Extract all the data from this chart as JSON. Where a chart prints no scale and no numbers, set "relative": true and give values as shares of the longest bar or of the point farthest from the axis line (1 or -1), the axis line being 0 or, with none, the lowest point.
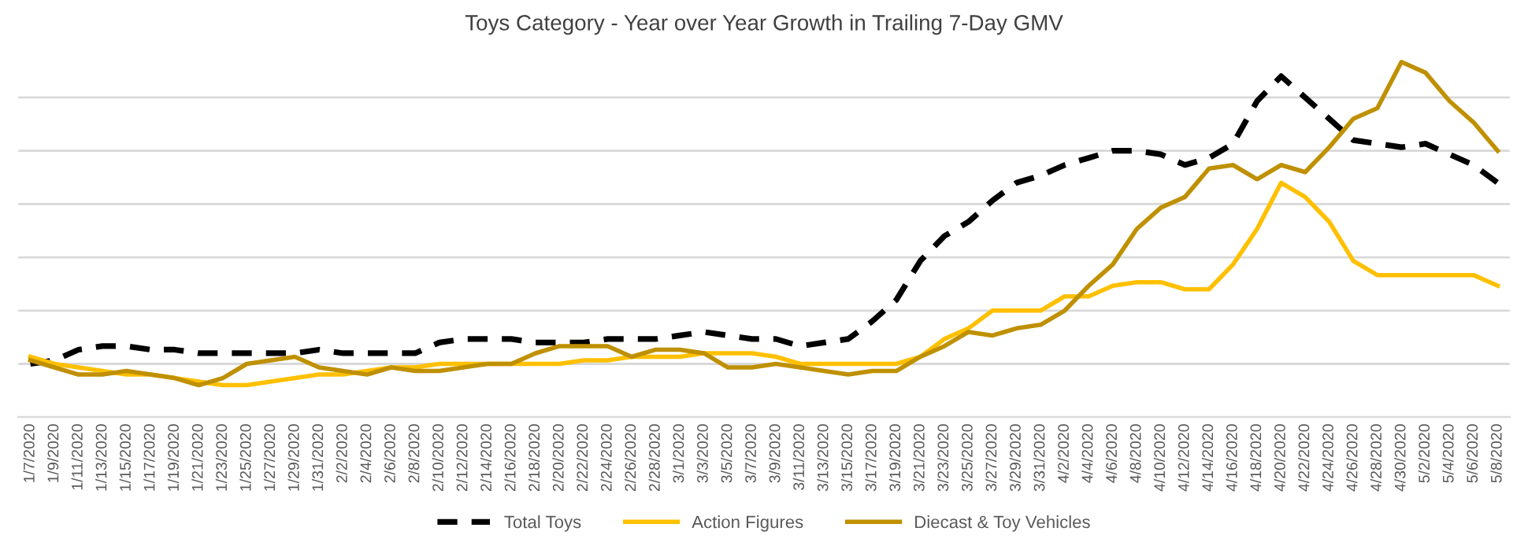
{
  "chart_data": {
    "type": "line",
    "title": "Toys Category - Year over Year Growth in Trailing 7-Day GMV",
    "relative": true,
    "grid": "y",
    "legend": "bottom",
    "categories": [
      "1/7/2020",
      "1/9/2020",
      "1/11/2020",
      "1/13/2020",
      "1/15/2020",
      "1/17/2020",
      "1/19/2020",
      "1/21/2020",
      "1/23/2020",
      "1/25/2020",
      "1/27/2020",
      "1/29/2020",
      "1/31/2020",
      "2/2/2020",
      "2/4/2020",
      "2/6/2020",
      "2/8/2020",
      "2/10/2020",
      "2/12/2020",
      "2/14/2020",
      "2/16/2020",
      "2/18/2020",
      "2/20/2020",
      "2/22/2020",
      "2/24/2020",
      "2/26/2020",
      "2/28/2020",
      "3/1/2020",
      "3/3/2020",
      "3/5/2020",
      "3/7/2020",
      "3/9/2020",
      "3/11/2020",
      "3/13/2020",
      "3/15/2020",
      "3/17/2020",
      "3/19/2020",
      "3/21/2020",
      "3/23/2020",
      "3/25/2020",
      "3/27/2020",
      "3/29/2020",
      "3/31/2020",
      "4/2/2020",
      "4/4/2020",
      "4/6/2020",
      "4/8/2020",
      "4/10/2020",
      "4/12/2020",
      "4/14/2020",
      "4/16/2020",
      "4/18/2020",
      "4/20/2020",
      "4/22/2020",
      "4/24/2020",
      "4/26/2020",
      "4/28/2020",
      "4/30/2020",
      "5/2/2020",
      "5/4/2020",
      "5/6/2020",
      "5/8/2020"
    ],
    "series": [
      {
        "name": "Total Toys",
        "color": "#000000",
        "line_style": "dashed",
        "values": [
          0.15,
          0.16,
          0.19,
          0.2,
          0.2,
          0.19,
          0.19,
          0.18,
          0.18,
          0.18,
          0.18,
          0.18,
          0.19,
          0.18,
          0.18,
          0.18,
          0.18,
          0.21,
          0.22,
          0.22,
          0.22,
          0.21,
          0.21,
          0.21,
          0.22,
          0.22,
          0.22,
          0.23,
          0.24,
          0.23,
          0.22,
          0.22,
          0.2,
          0.21,
          0.22,
          0.27,
          0.33,
          0.44,
          0.51,
          0.55,
          0.61,
          0.66,
          0.68,
          0.71,
          0.73,
          0.75,
          0.75,
          0.74,
          0.71,
          0.73,
          0.77,
          0.89,
          0.96,
          0.9,
          0.84,
          0.78,
          0.77,
          0.76,
          0.77,
          0.74,
          0.71,
          0.66
        ]
      },
      {
        "name": "Action Figures",
        "color": "#ffc000",
        "line_style": "solid",
        "values": [
          0.17,
          0.15,
          0.14,
          0.13,
          0.12,
          0.12,
          0.11,
          0.1,
          0.09,
          0.09,
          0.1,
          0.11,
          0.12,
          0.12,
          0.13,
          0.14,
          0.14,
          0.15,
          0.15,
          0.15,
          0.15,
          0.15,
          0.15,
          0.16,
          0.16,
          0.17,
          0.17,
          0.17,
          0.18,
          0.18,
          0.18,
          0.17,
          0.15,
          0.15,
          0.15,
          0.15,
          0.15,
          0.17,
          0.22,
          0.25,
          0.3,
          0.3,
          0.3,
          0.34,
          0.34,
          0.37,
          0.38,
          0.38,
          0.36,
          0.36,
          0.43,
          0.53,
          0.66,
          0.62,
          0.55,
          0.44,
          0.4,
          0.4,
          0.4,
          0.4,
          0.4,
          0.37
        ]
      },
      {
        "name": "Diecast & Toy Vehicles",
        "color": "#bf9000",
        "line_style": "solid",
        "values": [
          0.16,
          0.14,
          0.12,
          0.12,
          0.13,
          0.12,
          0.11,
          0.09,
          0.11,
          0.15,
          0.16,
          0.17,
          0.14,
          0.13,
          0.12,
          0.14,
          0.13,
          0.13,
          0.14,
          0.15,
          0.15,
          0.18,
          0.2,
          0.2,
          0.2,
          0.17,
          0.19,
          0.19,
          0.18,
          0.14,
          0.14,
          0.15,
          0.14,
          0.13,
          0.12,
          0.13,
          0.13,
          0.17,
          0.2,
          0.24,
          0.23,
          0.25,
          0.26,
          0.3,
          0.37,
          0.43,
          0.53,
          0.59,
          0.62,
          0.7,
          0.71,
          0.67,
          0.71,
          0.69,
          0.76,
          0.84,
          0.87,
          1,
          0.97,
          0.89,
          0.83,
          0.75
        ]
      }
    ]
  }
}
